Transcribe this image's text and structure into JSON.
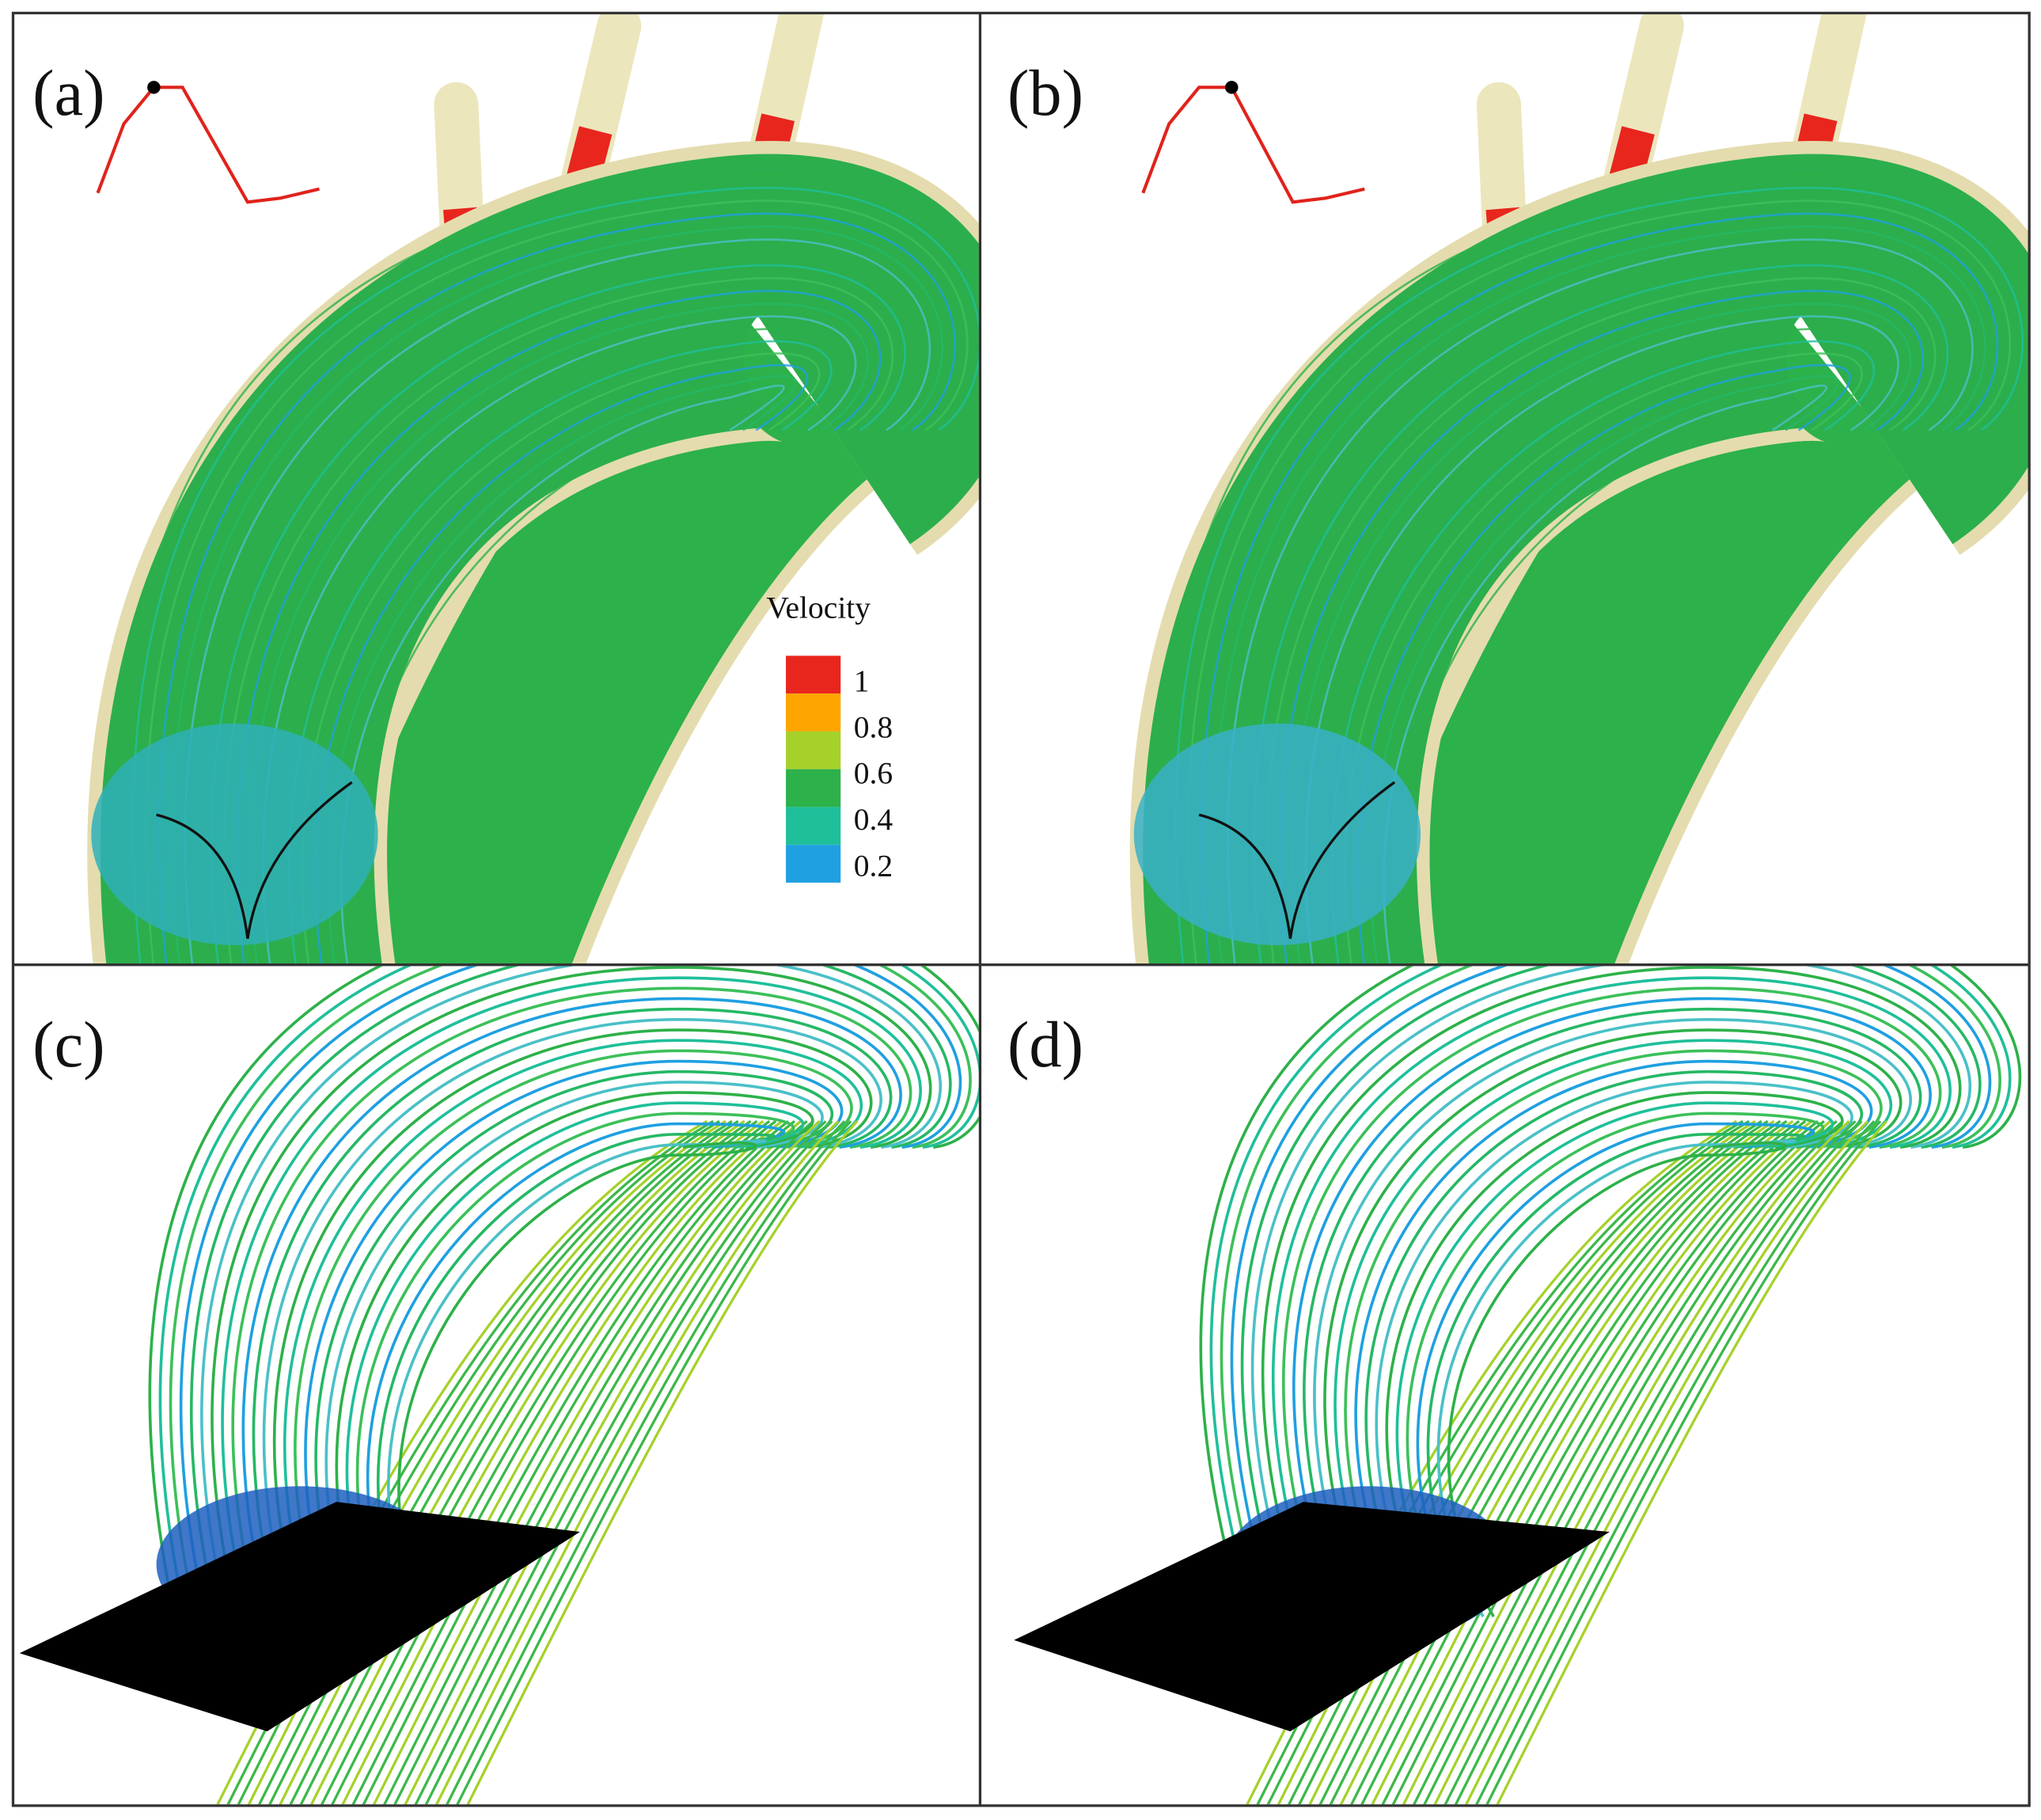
{
  "panels": [
    {
      "label": "(a)"
    },
    {
      "label": "(b)"
    },
    {
      "label": "(c)"
    },
    {
      "label": "(d)"
    }
  ],
  "legend": {
    "title": "Velocity",
    "colors": [
      "#e8261e",
      "#ffa500",
      "#a6d12a",
      "#2db14a",
      "#1fbf9a",
      "#1fa0e0"
    ],
    "ticks": [
      "1",
      "0.8",
      "0.6",
      "0.4",
      "0.2"
    ]
  }
}
